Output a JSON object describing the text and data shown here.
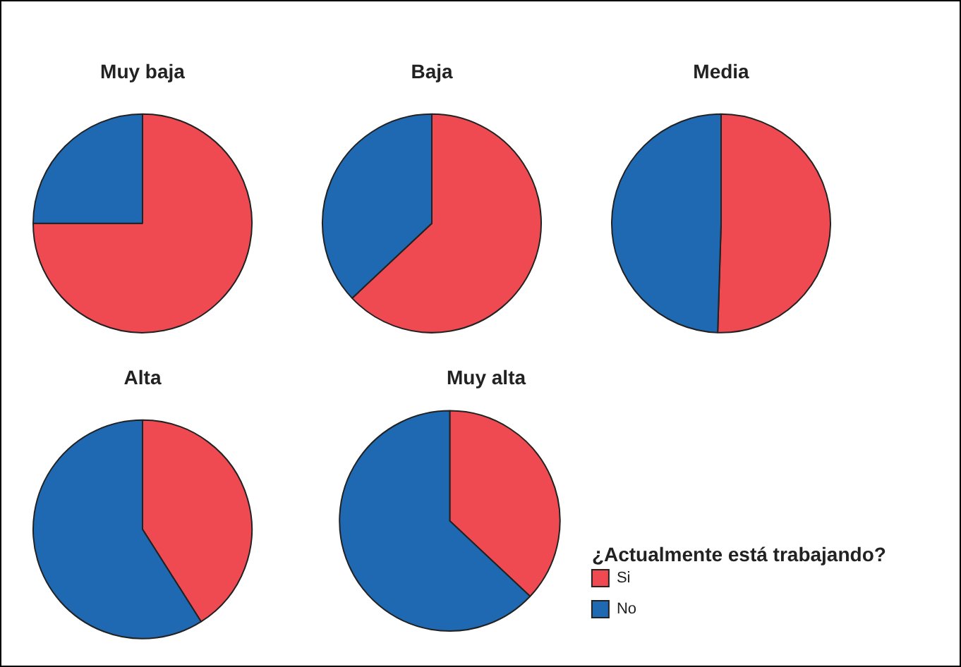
{
  "chart_data": [
    {
      "type": "pie",
      "title": "Muy baja",
      "categories": [
        null,
        null
      ],
      "values": [
        75,
        25
      ],
      "colors": [
        "#ef4a52",
        "#1f69b3"
      ],
      "legend": false
    },
    {
      "type": "pie",
      "title": "Baja",
      "categories": [
        null,
        null
      ],
      "values": [
        63,
        37
      ],
      "colors": [
        "#ef4a52",
        "#1f69b3"
      ],
      "legend": false
    },
    {
      "type": "pie",
      "title": "Media",
      "categories": [
        null,
        null
      ],
      "values": [
        50.5,
        49.5
      ],
      "colors": [
        "#ef4a52",
        "#1f69b3"
      ],
      "legend": false
    },
    {
      "type": "pie",
      "title": "Alta",
      "categories": [
        null,
        null
      ],
      "values": [
        41,
        59
      ],
      "colors": [
        "#ef4a52",
        "#1f69b3"
      ],
      "legend": false
    },
    {
      "type": "pie",
      "title": "Muy alta",
      "categories": [
        "Si",
        "No"
      ],
      "values": [
        37,
        63
      ],
      "colors": [
        "#ef4a52",
        "#1f69b3"
      ],
      "legend": "bottom right",
      "legend_title": "¿Actualmente está trabajando?"
    }
  ]
}
